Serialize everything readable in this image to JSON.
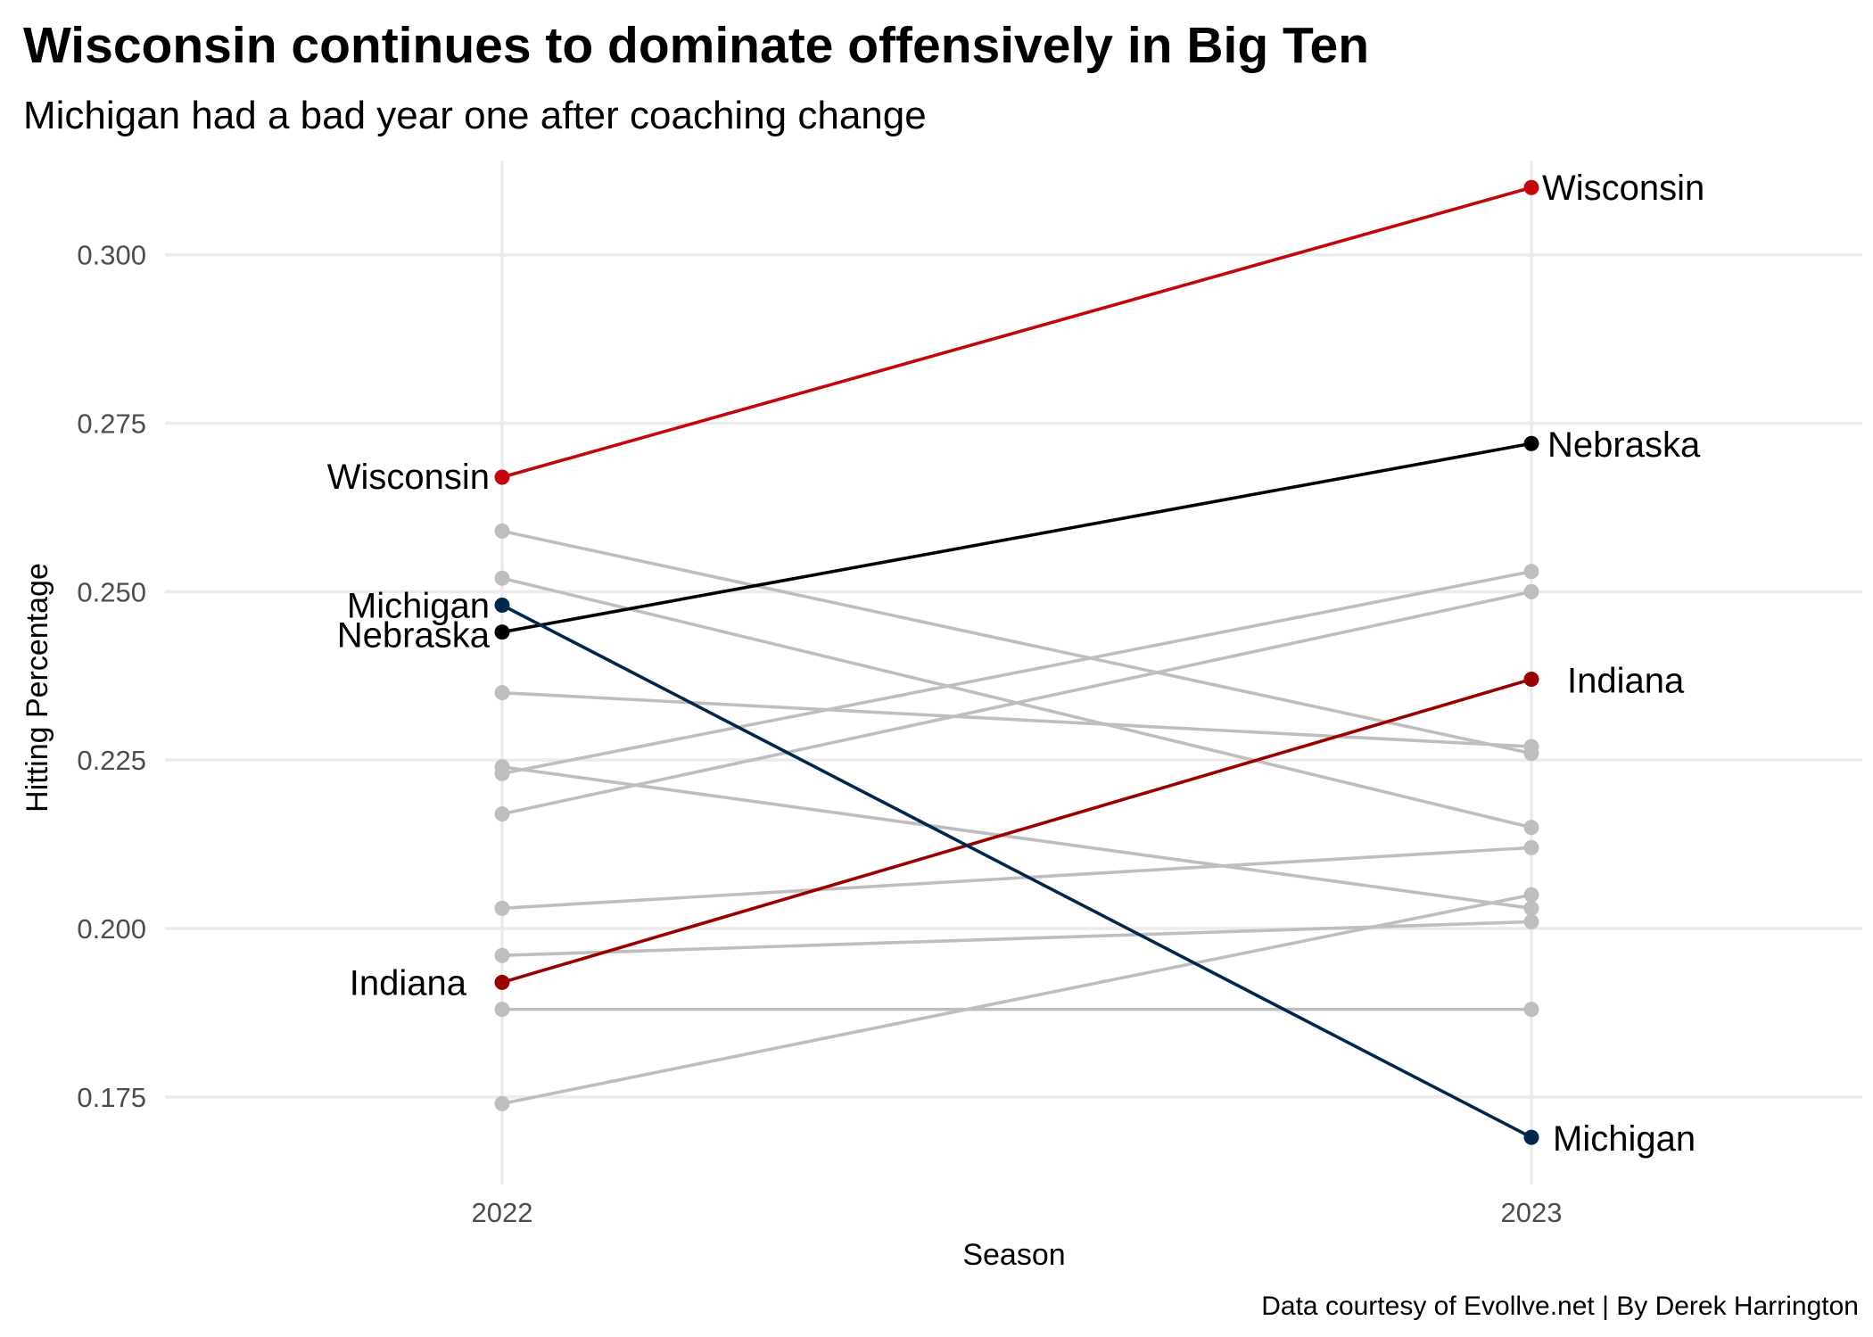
{
  "title": "Wisconsin continues to dominate offensively in Big Ten",
  "subtitle": "Michigan had a bad year one after coaching change",
  "caption": "Data courtesy of Evollve.net | By Derek Harrington",
  "chart_data": {
    "type": "line",
    "xlabel": "Season",
    "ylabel": "Hitting Percentage",
    "x": [
      "2022",
      "2023"
    ],
    "ylim": [
      0.162,
      0.314
    ],
    "yticks": [
      0.175,
      0.2,
      0.225,
      0.25,
      0.275,
      0.3
    ],
    "ytick_labels": [
      "0.175",
      "0.200",
      "0.225",
      "0.250",
      "0.275",
      "0.300"
    ],
    "grid": true,
    "legend": "none",
    "highlighted": [
      {
        "name": "Wisconsin",
        "values": [
          0.267,
          0.31
        ],
        "color": "#c5050c"
      },
      {
        "name": "Nebraska",
        "values": [
          0.244,
          0.272
        ],
        "color": "#000000"
      },
      {
        "name": "Indiana",
        "values": [
          0.192,
          0.237
        ],
        "color": "#990000"
      },
      {
        "name": "Michigan",
        "values": [
          0.248,
          0.169
        ],
        "color": "#00274c"
      }
    ],
    "others": {
      "color": "#bebebe",
      "series": [
        {
          "values": [
            0.259,
            0.226
          ]
        },
        {
          "values": [
            0.252,
            0.215
          ]
        },
        {
          "values": [
            0.235,
            0.227
          ]
        },
        {
          "values": [
            0.224,
            0.203
          ]
        },
        {
          "values": [
            0.223,
            0.253
          ]
        },
        {
          "values": [
            0.217,
            0.25
          ]
        },
        {
          "values": [
            0.203,
            0.212
          ]
        },
        {
          "values": [
            0.196,
            0.201
          ]
        },
        {
          "values": [
            0.188,
            0.188
          ]
        },
        {
          "values": [
            0.174,
            0.205
          ]
        }
      ]
    }
  }
}
